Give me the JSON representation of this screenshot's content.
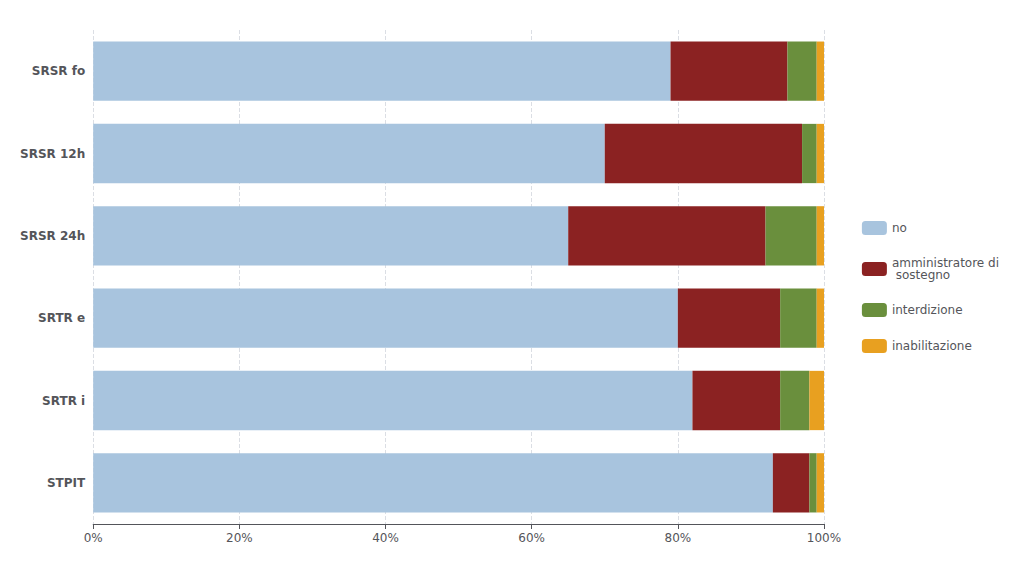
{
  "chart_data": {
    "type": "bar",
    "orientation": "horizontal",
    "stacked": true,
    "categories": [
      "SRSR fo",
      "SRSR 12h",
      "SRSR 24h",
      "SRTR e",
      "SRTR i",
      "STPIT"
    ],
    "series": [
      {
        "name": "no",
        "color": "#a8c4de",
        "values": [
          79,
          70,
          65,
          80,
          82,
          93
        ]
      },
      {
        "name": "amministratore di\n sostegno",
        "color": "#8b2222",
        "values": [
          16,
          27,
          27,
          14,
          12,
          5
        ]
      },
      {
        "name": "interdizione",
        "color": "#6a8f3d",
        "values": [
          4,
          2,
          7,
          5,
          4,
          1
        ]
      },
      {
        "name": "inabilitazione",
        "color": "#e8a020",
        "values": [
          1,
          1,
          1,
          1,
          2,
          1
        ]
      }
    ],
    "xlim": [
      0,
      100
    ],
    "xticks": [
      {
        "value": 0,
        "label": "0%"
      },
      {
        "value": 20,
        "label": "20%"
      },
      {
        "value": 40,
        "label": "40%"
      },
      {
        "value": 60,
        "label": "60%"
      },
      {
        "value": 80,
        "label": "80%"
      },
      {
        "value": 100,
        "label": "100%"
      }
    ],
    "grid": true,
    "legend": "right"
  }
}
